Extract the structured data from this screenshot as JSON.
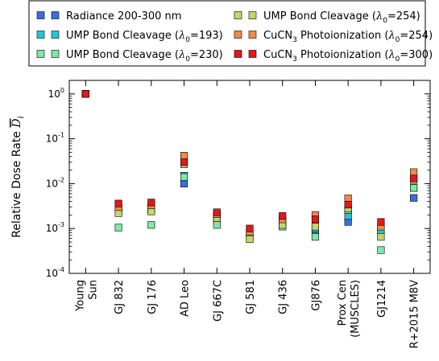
{
  "chart_data": {
    "type": "scatter",
    "categories": [
      "Young Sun",
      "GJ 832",
      "GJ 176",
      "AD Leo",
      "GJ 667C",
      "GJ 581",
      "GJ 436",
      "GJ876",
      "Prox Cen (MUSCLES)",
      "GJ1214",
      "R+2015 M8V"
    ],
    "category_lines": [
      [
        "Young",
        "Sun"
      ],
      [
        "GJ 832"
      ],
      [
        "GJ 176"
      ],
      [
        "AD Leo"
      ],
      [
        "GJ 667C"
      ],
      [
        "GJ 581"
      ],
      [
        "GJ 436"
      ],
      [
        "GJ876"
      ],
      [
        "Prox Cen",
        "(MUSCLES)"
      ],
      [
        "GJ1214"
      ],
      [
        "R+2015 M8V"
      ]
    ],
    "ylabel": {
      "main": "Relative Dose Rate ",
      "symbol": "D",
      "subscript": "i"
    },
    "yscale": "log",
    "ylim": [
      0.0001,
      2
    ],
    "yticks": [
      {
        "value": 1,
        "base": "10",
        "exp": "0"
      },
      {
        "value": 0.1,
        "base": "10",
        "exp": "-1"
      },
      {
        "value": 0.01,
        "base": "10",
        "exp": "-2"
      },
      {
        "value": 0.001,
        "base": "10",
        "exp": "-3"
      },
      {
        "value": 0.0001,
        "base": "10",
        "exp": "-4"
      }
    ],
    "grid": false,
    "legend_position": "top, outside plot",
    "series": [
      {
        "name": "Radiance 200-300 nm",
        "label_parts": [
          {
            "t": "Radiance 200-300 nm"
          }
        ],
        "color": "#3a6fd8",
        "values": [
          1.0,
          0.0028,
          0.0028,
          0.01,
          0.0019,
          0.0007,
          0.0013,
          0.0008,
          0.0014,
          0.0009,
          0.0048
        ]
      },
      {
        "name": "UMP Bond Cleavage (λ0=193)",
        "label_parts": [
          {
            "t": "UMP Bond Cleavage ("
          },
          {
            "t": "λ",
            "i": true
          },
          {
            "t": "0",
            "sub": true
          },
          {
            "t": "=193)"
          }
        ],
        "color": "#29c3d6",
        "values": [
          1.0,
          0.0025,
          0.0025,
          0.015,
          0.0016,
          0.0007,
          0.0013,
          0.001,
          0.0019,
          0.0009,
          0.008
        ]
      },
      {
        "name": "UMP Bond Cleavage (λ0=230)",
        "label_parts": [
          {
            "t": "UMP Bond Cleavage ("
          },
          {
            "t": "λ",
            "i": true
          },
          {
            "t": "0",
            "sub": true
          },
          {
            "t": "=230)"
          }
        ],
        "color": "#7ee8a6",
        "values": [
          1.0,
          0.00105,
          0.0012,
          0.014,
          0.0012,
          0.00065,
          0.0011,
          0.00065,
          0.0026,
          0.00033,
          0.008
        ]
      },
      {
        "name": "UMP Bond Cleavage (λ0=254)",
        "label_parts": [
          {
            "t": "UMP Bond Cleavage ("
          },
          {
            "t": "λ",
            "i": true
          },
          {
            "t": "0",
            "sub": true
          },
          {
            "t": "=254)"
          }
        ],
        "color": "#c4d66a",
        "values": [
          1.0,
          0.0022,
          0.0024,
          0.027,
          0.0017,
          0.00058,
          0.0012,
          0.0011,
          0.0028,
          0.00065,
          0.012
        ]
      },
      {
        "name": "CuCN3 Photoionization (λ0=254)",
        "label_parts": [
          {
            "t": "CuCN"
          },
          {
            "t": "3",
            "sub": true
          },
          {
            "t": " Photoionization ("
          },
          {
            "t": "λ",
            "i": true
          },
          {
            "t": "0",
            "sub": true
          },
          {
            "t": "=254)"
          }
        ],
        "color": "#f08a4b",
        "values": [
          1.0,
          0.003,
          0.0033,
          0.042,
          0.0021,
          0.00085,
          0.0016,
          0.002,
          0.0047,
          0.0011,
          0.018
        ]
      },
      {
        "name": "CuCN3 Photoionization (λ0=300)",
        "label_parts": [
          {
            "t": "CuCN"
          },
          {
            "t": "3",
            "sub": true
          },
          {
            "t": " Photoionization ("
          },
          {
            "t": "λ",
            "i": true
          },
          {
            "t": "0",
            "sub": true
          },
          {
            "t": "=300)"
          }
        ],
        "color": "#e0191b",
        "values": [
          1.0,
          0.0036,
          0.0038,
          0.03,
          0.0023,
          0.001,
          0.0019,
          0.0016,
          0.0034,
          0.0014,
          0.013
        ]
      }
    ]
  }
}
